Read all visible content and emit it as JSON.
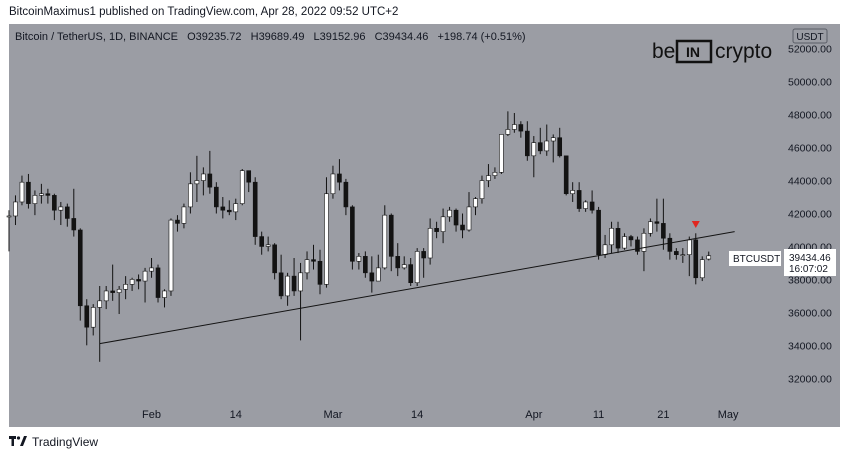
{
  "header": {
    "published_line": "BitcoinMaximus1 published on TradingView.com, Apr 28, 2022 09:52 UTC+2"
  },
  "legend": {
    "symbol": "Bitcoin / TetherUS, 1D, BINANCE",
    "o_label": "O",
    "o_value": "39235.72",
    "h_label": "H",
    "h_value": "39689.49",
    "l_label": "L",
    "l_value": "39152.96",
    "c_label": "C",
    "c_value": "39434.46",
    "change": "+198.74 (+0.51%)"
  },
  "watermark": {
    "left": "be",
    "mid": "IN",
    "right": "crypto"
  },
  "price_axis": {
    "currency": "USDT",
    "ticks": [
      "52000.00",
      "50000.00",
      "48000.00",
      "46000.00",
      "44000.00",
      "42000.00",
      "40000.00",
      "38000.00",
      "36000.00",
      "34000.00",
      "32000.00"
    ]
  },
  "price_tag": {
    "symbol": "BTCUSDT",
    "price": "39434.46",
    "countdown": "16:07:02"
  },
  "time_axis": {
    "ticks": [
      "Feb",
      "14",
      "Mar",
      "14",
      "Apr",
      "11",
      "21",
      "May"
    ]
  },
  "footer": {
    "brand": "TradingView"
  },
  "colors": {
    "plot_bg": "#9b9da4",
    "up": "#ffffff",
    "down": "#131313",
    "marker": "#e0261f",
    "trendline": "#131313"
  },
  "chart_data": {
    "type": "candlestick",
    "title": "Bitcoin / TetherUS, 1D, BINANCE",
    "ylim": [
      30500,
      53500
    ],
    "y_ticks": [
      32000,
      34000,
      36000,
      38000,
      40000,
      42000,
      44000,
      46000,
      48000,
      50000,
      52000
    ],
    "x_tick_labels": [
      "Feb",
      "14",
      "Mar",
      "14",
      "Apr",
      "11",
      "21",
      "May"
    ],
    "x_tick_dates": [
      "2022-02-01",
      "2022-02-14",
      "2022-03-01",
      "2022-03-14",
      "2022-04-01",
      "2022-04-11",
      "2022-04-21",
      "2022-05-01"
    ],
    "xlim": [
      "2022-01-10",
      "2022-05-09"
    ],
    "candles": [
      {
        "date": "2022-01-10",
        "o": 41800,
        "h": 42200,
        "l": 39700,
        "c": 41850
      },
      {
        "date": "2022-01-11",
        "o": 41850,
        "h": 43100,
        "l": 41300,
        "c": 42700
      },
      {
        "date": "2022-01-12",
        "o": 42700,
        "h": 44300,
        "l": 42500,
        "c": 43900
      },
      {
        "date": "2022-01-13",
        "o": 43900,
        "h": 44400,
        "l": 42300,
        "c": 42600
      },
      {
        "date": "2022-01-14",
        "o": 42600,
        "h": 43400,
        "l": 41900,
        "c": 43100
      },
      {
        "date": "2022-01-15",
        "o": 43100,
        "h": 43800,
        "l": 42600,
        "c": 43200
      },
      {
        "date": "2022-01-16",
        "o": 43200,
        "h": 43500,
        "l": 42600,
        "c": 43100
      },
      {
        "date": "2022-01-17",
        "o": 43100,
        "h": 43200,
        "l": 41600,
        "c": 42200
      },
      {
        "date": "2022-01-18",
        "o": 42200,
        "h": 42700,
        "l": 41300,
        "c": 42400
      },
      {
        "date": "2022-01-19",
        "o": 42400,
        "h": 42600,
        "l": 41200,
        "c": 41700
      },
      {
        "date": "2022-01-20",
        "o": 41700,
        "h": 43500,
        "l": 40600,
        "c": 41000
      },
      {
        "date": "2022-01-21",
        "o": 41000,
        "h": 41100,
        "l": 35500,
        "c": 36400
      },
      {
        "date": "2022-01-22",
        "o": 36400,
        "h": 36800,
        "l": 34000,
        "c": 35100
      },
      {
        "date": "2022-01-23",
        "o": 35100,
        "h": 36500,
        "l": 34600,
        "c": 36300
      },
      {
        "date": "2022-01-24",
        "o": 36300,
        "h": 37600,
        "l": 33000,
        "c": 36700
      },
      {
        "date": "2022-01-25",
        "o": 36700,
        "h": 37600,
        "l": 36200,
        "c": 37300
      },
      {
        "date": "2022-01-26",
        "o": 37300,
        "h": 38900,
        "l": 36700,
        "c": 37200
      },
      {
        "date": "2022-01-27",
        "o": 37200,
        "h": 37600,
        "l": 35900,
        "c": 37400
      },
      {
        "date": "2022-01-28",
        "o": 37400,
        "h": 38200,
        "l": 36800,
        "c": 37700
      },
      {
        "date": "2022-01-29",
        "o": 37700,
        "h": 38100,
        "l": 37300,
        "c": 38000
      },
      {
        "date": "2022-01-30",
        "o": 38000,
        "h": 38300,
        "l": 37400,
        "c": 37900
      },
      {
        "date": "2022-01-31",
        "o": 37900,
        "h": 38700,
        "l": 36600,
        "c": 38500
      },
      {
        "date": "2022-02-01",
        "o": 38500,
        "h": 39300,
        "l": 38100,
        "c": 38700
      },
      {
        "date": "2022-02-02",
        "o": 38700,
        "h": 38900,
        "l": 36600,
        "c": 36900
      },
      {
        "date": "2022-02-03",
        "o": 36900,
        "h": 37400,
        "l": 36300,
        "c": 37300
      },
      {
        "date": "2022-02-04",
        "o": 37300,
        "h": 41700,
        "l": 37000,
        "c": 41600
      },
      {
        "date": "2022-02-05",
        "o": 41600,
        "h": 41900,
        "l": 40900,
        "c": 41400
      },
      {
        "date": "2022-02-06",
        "o": 41400,
        "h": 42600,
        "l": 41100,
        "c": 42400
      },
      {
        "date": "2022-02-07",
        "o": 42400,
        "h": 44500,
        "l": 42000,
        "c": 43800
      },
      {
        "date": "2022-02-08",
        "o": 43800,
        "h": 45500,
        "l": 42700,
        "c": 44000
      },
      {
        "date": "2022-02-09",
        "o": 44000,
        "h": 44800,
        "l": 43100,
        "c": 44400
      },
      {
        "date": "2022-02-10",
        "o": 44400,
        "h": 45800,
        "l": 43200,
        "c": 43600
      },
      {
        "date": "2022-02-11",
        "o": 43600,
        "h": 43900,
        "l": 42000,
        "c": 42400
      },
      {
        "date": "2022-02-12",
        "o": 42400,
        "h": 43000,
        "l": 41700,
        "c": 42200
      },
      {
        "date": "2022-02-13",
        "o": 42200,
        "h": 42800,
        "l": 41900,
        "c": 42100
      },
      {
        "date": "2022-02-14",
        "o": 42100,
        "h": 42900,
        "l": 41600,
        "c": 42600
      },
      {
        "date": "2022-02-15",
        "o": 42600,
        "h": 44700,
        "l": 42500,
        "c": 44600
      },
      {
        "date": "2022-02-16",
        "o": 44600,
        "h": 44600,
        "l": 43300,
        "c": 43900
      },
      {
        "date": "2022-02-17",
        "o": 43900,
        "h": 44200,
        "l": 40100,
        "c": 40600
      },
      {
        "date": "2022-02-18",
        "o": 40600,
        "h": 40900,
        "l": 39500,
        "c": 40000
      },
      {
        "date": "2022-02-19",
        "o": 40000,
        "h": 40600,
        "l": 39700,
        "c": 40100
      },
      {
        "date": "2022-02-20",
        "o": 40100,
        "h": 40200,
        "l": 38000,
        "c": 38400
      },
      {
        "date": "2022-02-21",
        "o": 38400,
        "h": 39500,
        "l": 36800,
        "c": 37000
      },
      {
        "date": "2022-02-22",
        "o": 37000,
        "h": 38400,
        "l": 36400,
        "c": 38200
      },
      {
        "date": "2022-02-23",
        "o": 38200,
        "h": 39300,
        "l": 37000,
        "c": 37300
      },
      {
        "date": "2022-02-24",
        "o": 37300,
        "h": 39000,
        "l": 34300,
        "c": 38400
      },
      {
        "date": "2022-02-25",
        "o": 38400,
        "h": 39700,
        "l": 38000,
        "c": 39200
      },
      {
        "date": "2022-02-26",
        "o": 39200,
        "h": 40100,
        "l": 38600,
        "c": 39100
      },
      {
        "date": "2022-02-27",
        "o": 39100,
        "h": 39800,
        "l": 37100,
        "c": 37700
      },
      {
        "date": "2022-02-28",
        "o": 37700,
        "h": 44200,
        "l": 37500,
        "c": 43200
      },
      {
        "date": "2022-03-01",
        "o": 43200,
        "h": 44900,
        "l": 42900,
        "c": 44400
      },
      {
        "date": "2022-03-02",
        "o": 44400,
        "h": 45300,
        "l": 43400,
        "c": 43900
      },
      {
        "date": "2022-03-03",
        "o": 43900,
        "h": 44100,
        "l": 41900,
        "c": 42400
      },
      {
        "date": "2022-03-04",
        "o": 42400,
        "h": 42500,
        "l": 38600,
        "c": 39100
      },
      {
        "date": "2022-03-05",
        "o": 39100,
        "h": 39600,
        "l": 38600,
        "c": 39400
      },
      {
        "date": "2022-03-06",
        "o": 39400,
        "h": 39700,
        "l": 38100,
        "c": 38400
      },
      {
        "date": "2022-03-07",
        "o": 38400,
        "h": 39400,
        "l": 37200,
        "c": 37900
      },
      {
        "date": "2022-03-08",
        "o": 37900,
        "h": 39500,
        "l": 37900,
        "c": 38700
      },
      {
        "date": "2022-03-09",
        "o": 38700,
        "h": 42500,
        "l": 38600,
        "c": 41900
      },
      {
        "date": "2022-03-10",
        "o": 41900,
        "h": 42000,
        "l": 38500,
        "c": 39400
      },
      {
        "date": "2022-03-11",
        "o": 39400,
        "h": 40200,
        "l": 38200,
        "c": 38700
      },
      {
        "date": "2022-03-12",
        "o": 38700,
        "h": 39400,
        "l": 38600,
        "c": 38900
      },
      {
        "date": "2022-03-13",
        "o": 38900,
        "h": 39300,
        "l": 37600,
        "c": 37800
      },
      {
        "date": "2022-03-14",
        "o": 37800,
        "h": 39900,
        "l": 37600,
        "c": 39700
      },
      {
        "date": "2022-03-15",
        "o": 39700,
        "h": 39900,
        "l": 38100,
        "c": 39300
      },
      {
        "date": "2022-03-16",
        "o": 39300,
        "h": 41700,
        "l": 38900,
        "c": 41100
      },
      {
        "date": "2022-03-17",
        "o": 41100,
        "h": 41500,
        "l": 40500,
        "c": 40900
      },
      {
        "date": "2022-03-18",
        "o": 40900,
        "h": 42300,
        "l": 40200,
        "c": 41800
      },
      {
        "date": "2022-03-19",
        "o": 41800,
        "h": 42400,
        "l": 41500,
        "c": 42200
      },
      {
        "date": "2022-03-20",
        "o": 42200,
        "h": 42300,
        "l": 40900,
        "c": 41300
      },
      {
        "date": "2022-03-21",
        "o": 41300,
        "h": 42000,
        "l": 40500,
        "c": 41000
      },
      {
        "date": "2022-03-22",
        "o": 41000,
        "h": 43300,
        "l": 40900,
        "c": 42400
      },
      {
        "date": "2022-03-23",
        "o": 42400,
        "h": 43000,
        "l": 41900,
        "c": 42900
      },
      {
        "date": "2022-03-24",
        "o": 42900,
        "h": 44300,
        "l": 42600,
        "c": 44000
      },
      {
        "date": "2022-03-25",
        "o": 44000,
        "h": 45000,
        "l": 43600,
        "c": 44300
      },
      {
        "date": "2022-03-26",
        "o": 44300,
        "h": 44800,
        "l": 44100,
        "c": 44500
      },
      {
        "date": "2022-03-27",
        "o": 44500,
        "h": 46800,
        "l": 44400,
        "c": 46800
      },
      {
        "date": "2022-03-28",
        "o": 46800,
        "h": 48200,
        "l": 46700,
        "c": 47100
      },
      {
        "date": "2022-03-29",
        "o": 47100,
        "h": 48100,
        "l": 46900,
        "c": 47400
      },
      {
        "date": "2022-03-30",
        "o": 47400,
        "h": 47600,
        "l": 46600,
        "c": 47000
      },
      {
        "date": "2022-03-31",
        "o": 47000,
        "h": 47600,
        "l": 45200,
        "c": 45500
      },
      {
        "date": "2022-04-01",
        "o": 45500,
        "h": 46700,
        "l": 44200,
        "c": 46300
      },
      {
        "date": "2022-04-02",
        "o": 46300,
        "h": 47200,
        "l": 45600,
        "c": 45800
      },
      {
        "date": "2022-04-03",
        "o": 45800,
        "h": 47400,
        "l": 45500,
        "c": 46400
      },
      {
        "date": "2022-04-04",
        "o": 46400,
        "h": 46800,
        "l": 45100,
        "c": 46600
      },
      {
        "date": "2022-04-05",
        "o": 46600,
        "h": 47200,
        "l": 45400,
        "c": 45500
      },
      {
        "date": "2022-04-06",
        "o": 45500,
        "h": 45500,
        "l": 43100,
        "c": 43200
      },
      {
        "date": "2022-04-07",
        "o": 43200,
        "h": 43900,
        "l": 42700,
        "c": 43400
      },
      {
        "date": "2022-04-08",
        "o": 43400,
        "h": 43900,
        "l": 42100,
        "c": 42300
      },
      {
        "date": "2022-04-09",
        "o": 42300,
        "h": 42800,
        "l": 42100,
        "c": 42700
      },
      {
        "date": "2022-04-10",
        "o": 42700,
        "h": 43400,
        "l": 42000,
        "c": 42200
      },
      {
        "date": "2022-04-11",
        "o": 42200,
        "h": 42400,
        "l": 39200,
        "c": 39500
      },
      {
        "date": "2022-04-12",
        "o": 39500,
        "h": 40700,
        "l": 39300,
        "c": 40100
      },
      {
        "date": "2022-04-13",
        "o": 40100,
        "h": 41500,
        "l": 39600,
        "c": 41100
      },
      {
        "date": "2022-04-14",
        "o": 41100,
        "h": 41500,
        "l": 39600,
        "c": 39900
      },
      {
        "date": "2022-04-15",
        "o": 39900,
        "h": 40800,
        "l": 39800,
        "c": 40600
      },
      {
        "date": "2022-04-16",
        "o": 40600,
        "h": 40700,
        "l": 40000,
        "c": 40400
      },
      {
        "date": "2022-04-17",
        "o": 40400,
        "h": 40600,
        "l": 39500,
        "c": 39700
      },
      {
        "date": "2022-04-18",
        "o": 39700,
        "h": 41100,
        "l": 38500,
        "c": 40800
      },
      {
        "date": "2022-04-19",
        "o": 40800,
        "h": 41700,
        "l": 40600,
        "c": 41500
      },
      {
        "date": "2022-04-20",
        "o": 41500,
        "h": 42900,
        "l": 40900,
        "c": 41400
      },
      {
        "date": "2022-04-21",
        "o": 41400,
        "h": 42900,
        "l": 39800,
        "c": 40500
      },
      {
        "date": "2022-04-22",
        "o": 40500,
        "h": 40800,
        "l": 39200,
        "c": 39700
      },
      {
        "date": "2022-04-23",
        "o": 39700,
        "h": 39900,
        "l": 39200,
        "c": 39500
      },
      {
        "date": "2022-04-24",
        "o": 39500,
        "h": 39900,
        "l": 39000,
        "c": 39500
      },
      {
        "date": "2022-04-25",
        "o": 39500,
        "h": 40600,
        "l": 38200,
        "c": 40400
      },
      {
        "date": "2022-04-26",
        "o": 40400,
        "h": 40800,
        "l": 37700,
        "c": 38100
      },
      {
        "date": "2022-04-27",
        "o": 38100,
        "h": 39400,
        "l": 37900,
        "c": 39200
      },
      {
        "date": "2022-04-28",
        "o": 39235.72,
        "h": 39689.49,
        "l": 39152.96,
        "c": 39434.46
      }
    ],
    "trendline": {
      "from": [
        "2022-01-24",
        34100
      ],
      "to": [
        "2022-05-02",
        40900
      ]
    },
    "marker": {
      "date": "2022-04-26",
      "price": 41300,
      "shape": "triangle-down"
    }
  }
}
